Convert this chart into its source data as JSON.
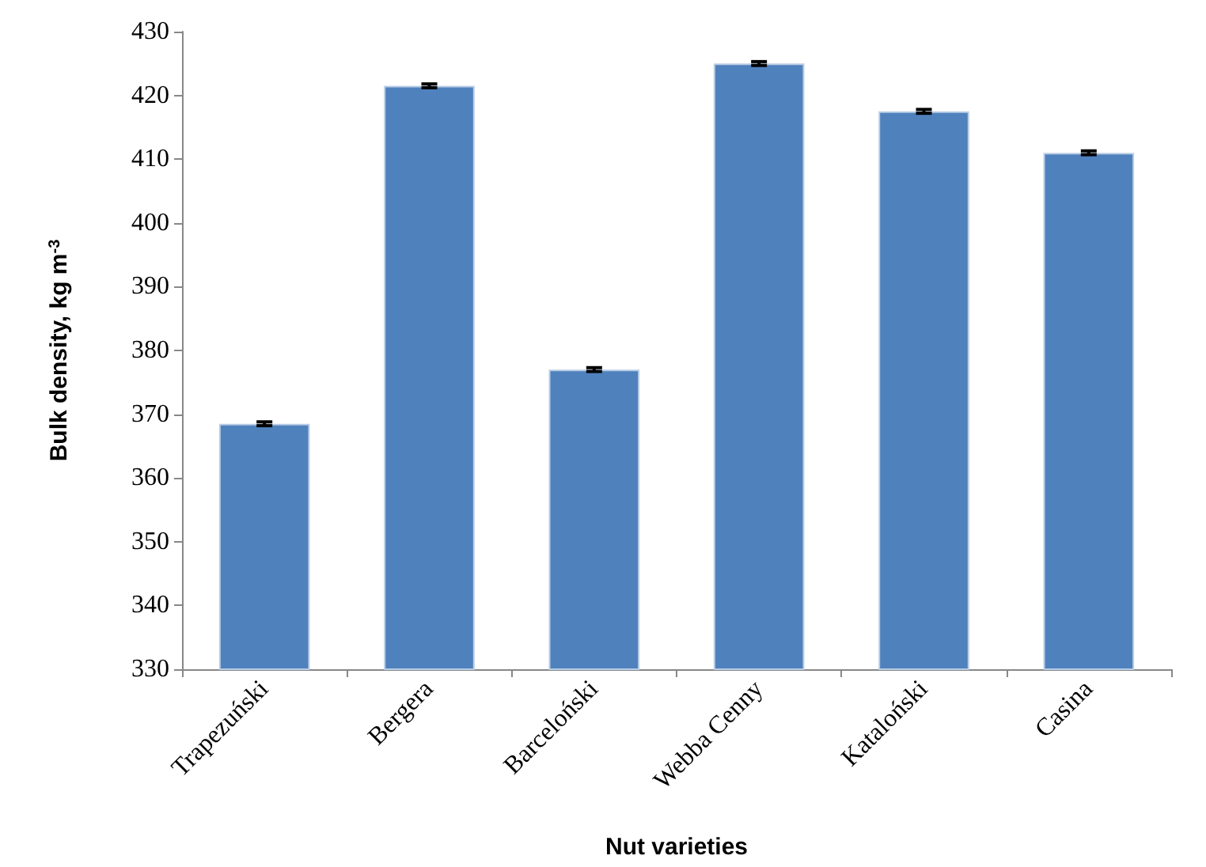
{
  "chart_data": {
    "type": "bar",
    "xlabel": "Nut varieties",
    "ylabel": "Bulk density, kg m$^{-3}$",
    "categories": [
      "Trapezuński",
      "Bergera",
      "Barceloński",
      "Webba Cenny",
      "Kataloński",
      "Casina"
    ],
    "values": [
      368.5,
      421.5,
      377,
      425,
      417.5,
      411
    ],
    "errors": [
      0.3,
      0.3,
      0.3,
      0.3,
      0.3,
      0.3
    ],
    "color": "#4f81bd",
    "ylim": [
      330,
      430
    ],
    "yticks": [
      330,
      340,
      350,
      360,
      370,
      380,
      390,
      400,
      410,
      420,
      430
    ],
    "grid": false
  }
}
